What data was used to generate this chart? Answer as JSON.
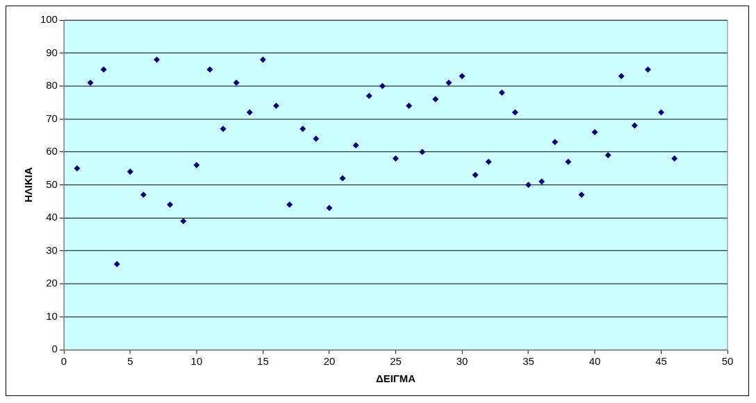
{
  "chart_data": {
    "type": "scatter",
    "xlabel": "ΔΕΙΓΜΑ",
    "ylabel": "ΗΛΙΚΙΑ",
    "x": [
      1,
      2,
      3,
      4,
      5,
      6,
      7,
      8,
      9,
      10,
      11,
      12,
      13,
      14,
      15,
      16,
      17,
      18,
      19,
      20,
      21,
      22,
      23,
      24,
      25,
      26,
      27,
      28,
      29,
      30,
      31,
      32,
      33,
      34,
      35,
      36,
      37,
      38,
      39,
      40,
      41,
      42,
      43,
      44,
      45,
      46
    ],
    "series": [
      {
        "color": "#000080",
        "values": [
          55,
          81,
          85,
          26,
          54,
          47,
          88,
          44,
          39,
          56,
          85,
          67,
          81,
          72,
          88,
          74,
          44,
          67,
          64,
          43,
          52,
          62,
          77,
          80,
          58,
          74,
          60,
          76,
          81,
          83,
          53,
          57,
          78,
          72,
          50,
          51,
          63,
          57,
          47,
          66,
          59,
          83,
          68,
          85,
          72,
          58
        ]
      }
    ],
    "xlim": [
      0,
      50
    ],
    "xticks": [
      0,
      5,
      10,
      15,
      20,
      25,
      30,
      35,
      40,
      45,
      50
    ],
    "ylim": [
      0,
      100
    ],
    "yticks": [
      0,
      10,
      20,
      30,
      40,
      50,
      60,
      70,
      80,
      90,
      100
    ],
    "grid": "y",
    "legend": false,
    "marker": "diamond"
  }
}
